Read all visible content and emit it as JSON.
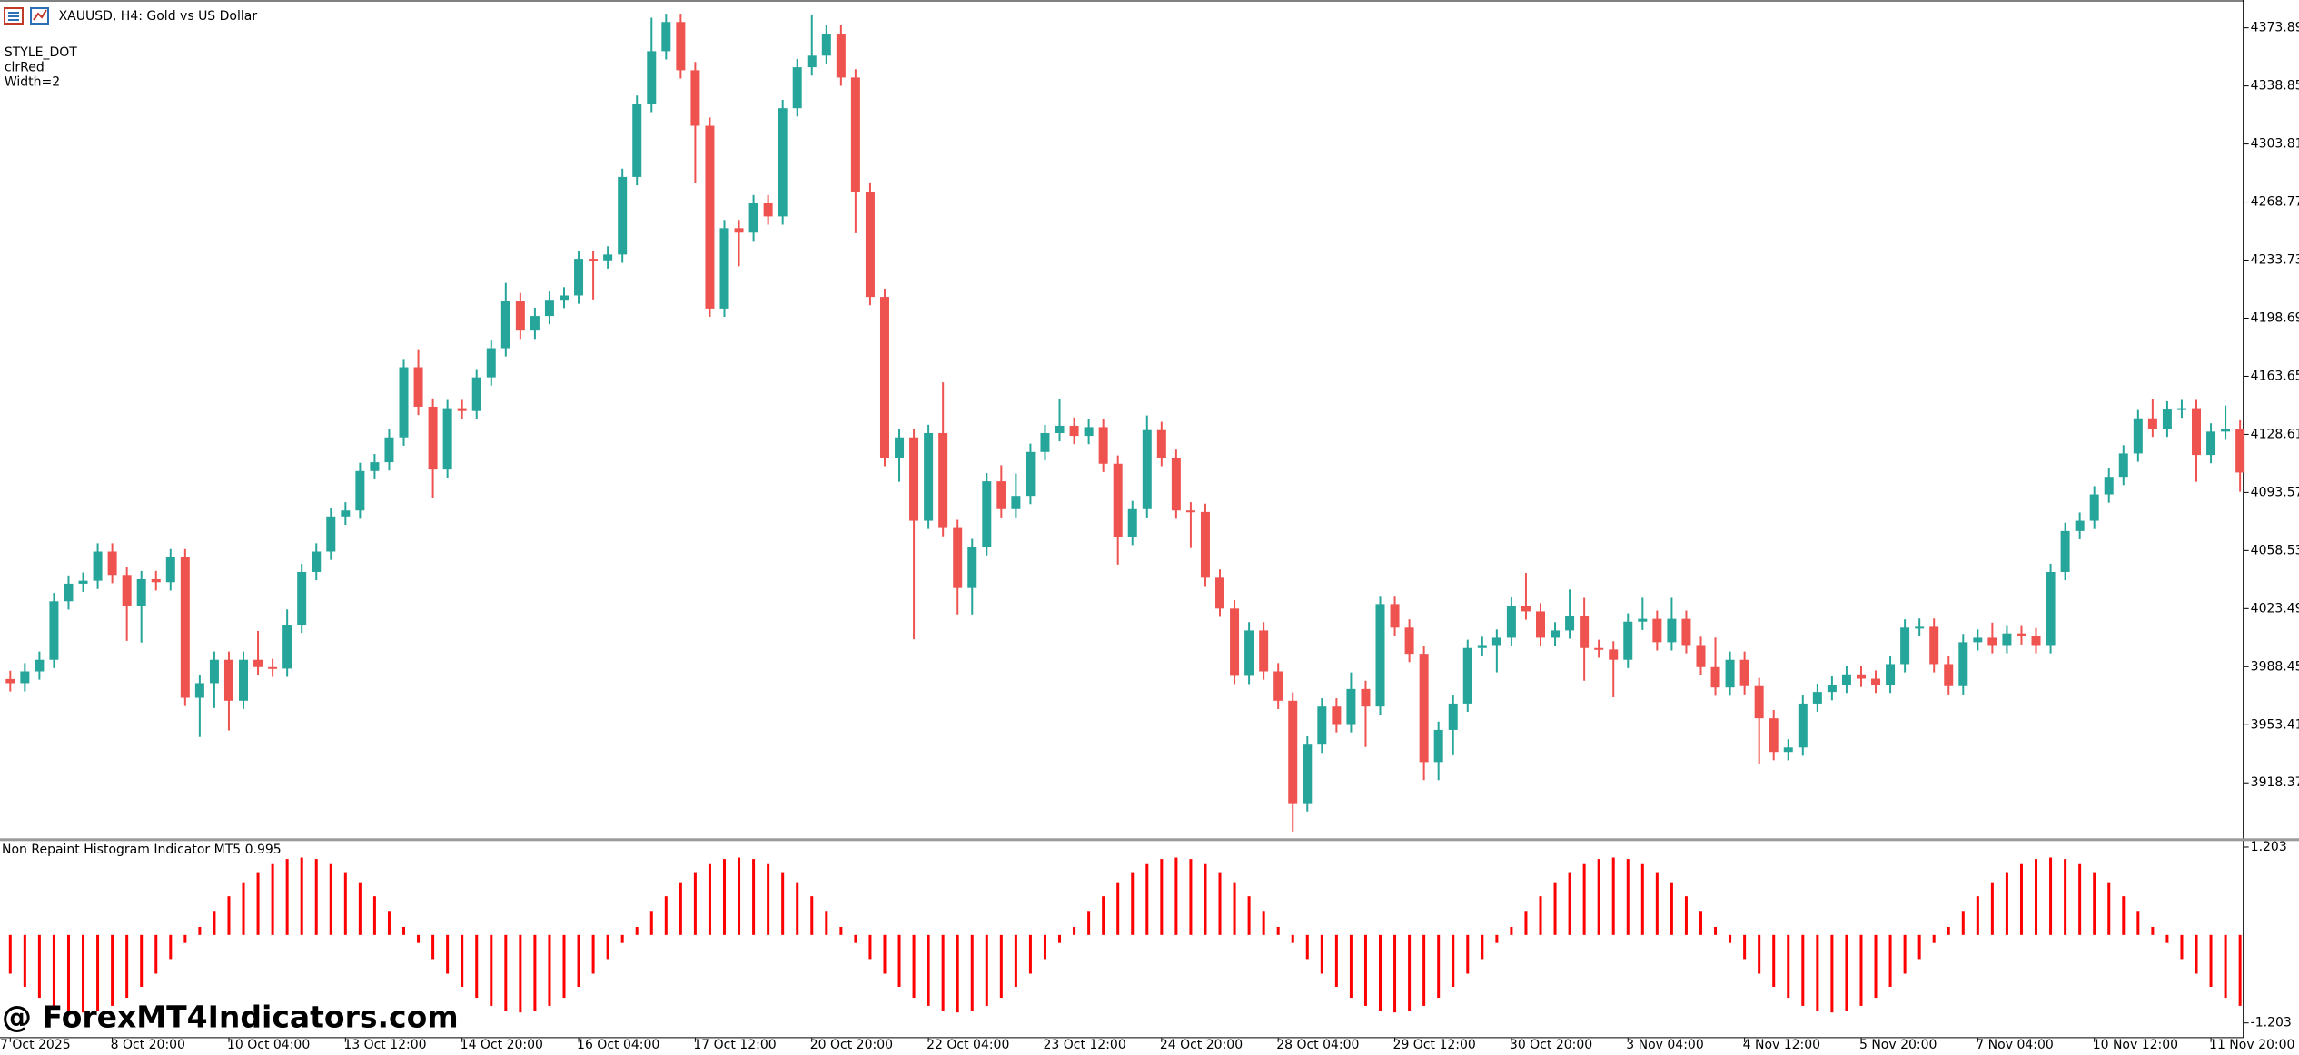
{
  "chart_data": [
    {
      "type": "candlestick",
      "title": "XAUUSD, H4:  Gold vs US Dollar",
      "annotations": [
        "STYLE_DOT",
        "clrRed",
        "Width=2"
      ],
      "watermark": "@ ForexMT4Indicators.com",
      "categories": [
        "7 Oct 2025",
        null,
        null,
        null,
        null,
        null,
        null,
        "8 Oct 20:00",
        null,
        null,
        null,
        null,
        null,
        null,
        null,
        "10 Oct 04:00",
        null,
        null,
        null,
        null,
        null,
        null,
        null,
        "13 Oct 12:00",
        null,
        null,
        null,
        null,
        null,
        null,
        null,
        "14 Oct 20:00",
        null,
        null,
        null,
        null,
        null,
        null,
        null,
        "16 Oct 04:00",
        null,
        null,
        null,
        null,
        null,
        null,
        null,
        "17 Oct 12:00",
        null,
        null,
        null,
        null,
        null,
        null,
        null,
        "20 Oct 20:00",
        null,
        null,
        null,
        null,
        null,
        null,
        null,
        "22 Oct 04:00",
        null,
        null,
        null,
        null,
        null,
        null,
        null,
        "23 Oct 12:00",
        null,
        null,
        null,
        null,
        null,
        null,
        null,
        "24 Oct 20:00",
        null,
        null,
        null,
        null,
        null,
        null,
        null,
        "28 Oct 04:00",
        null,
        null,
        null,
        null,
        null,
        null,
        null,
        "29 Oct 12:00",
        null,
        null,
        null,
        null,
        null,
        null,
        null,
        "30 Oct 20:00",
        null,
        null,
        null,
        null,
        null,
        null,
        null,
        "3 Nov 04:00",
        null,
        null,
        null,
        null,
        null,
        null,
        null,
        "4 Nov 12:00",
        null,
        null,
        null,
        null,
        null,
        null,
        null,
        "5 Nov 20:00",
        null,
        null,
        null,
        null,
        null,
        null,
        null,
        "7 Nov 04:00",
        null,
        null,
        null,
        null,
        null,
        null,
        null,
        "10 Nov 12:00",
        null,
        null,
        null,
        null,
        null,
        null,
        null,
        "11 Nov 20:00",
        null,
        null
      ],
      "open": [
        3981.0,
        3978.5,
        3985.6,
        3992.6,
        4027.9,
        4038.5,
        4040.3,
        4057.9,
        4043.8,
        4025.3,
        4041.2,
        4039.4,
        4054.4,
        3969.7,
        3978.5,
        3992.6,
        3967.9,
        3992.6,
        3988.2,
        3987.3,
        4013.8,
        4045.6,
        4057.9,
        4079.1,
        4082.7,
        4106.5,
        4111.8,
        4126.8,
        4169.1,
        4145.3,
        4107.4,
        4144.4,
        4142.7,
        4163.0,
        4180.6,
        4208.9,
        4191.2,
        4200.0,
        4209.8,
        4212.4,
        4234.5,
        4233.6,
        4237.1,
        4283.9,
        4328.0,
        4359.8,
        4377.4,
        4348.3,
        4314.8,
        4204.5,
        4253.0,
        4250.3,
        4268.0,
        4260.1,
        4325.4,
        4350.1,
        4357.1,
        4370.4,
        4343.9,
        4275.1,
        4211.5,
        4114.4,
        4126.8,
        4076.5,
        4129.4,
        4072.1,
        4035.9,
        4060.6,
        4100.3,
        4083.5,
        4091.5,
        4118.0,
        4129.4,
        4133.8,
        4127.7,
        4133.0,
        4110.9,
        4066.8,
        4083.5,
        4131.2,
        4114.4,
        4082.7,
        4081.8,
        4042.1,
        4023.5,
        3982.9,
        4010.3,
        3985.6,
        3967.9,
        3906.1,
        3941.4,
        3964.4,
        3953.8,
        3975.0,
        3964.4,
        4026.2,
        4012.0,
        3996.2,
        3930.9,
        3950.3,
        3966.2,
        3999.7,
        4001.5,
        4005.9,
        4025.3,
        4021.8,
        4005.9,
        4010.3,
        4019.1,
        3999.7,
        3998.8,
        3992.6,
        4015.6,
        4017.3,
        4003.2,
        4017.3,
        4001.5,
        3988.2,
        3975.9,
        3992.6,
        3976.7,
        3957.3,
        3937.0,
        3939.7,
        3966.2,
        3973.2,
        3977.6,
        3983.8,
        3981.2,
        3977.6,
        3990.0,
        4012.0,
        4012.5,
        3990.0,
        3976.7,
        4003.2,
        4005.9,
        4001.5,
        4008.5,
        4006.8,
        4001.5,
        4045.6,
        4070.3,
        4076.5,
        4092.4,
        4103.0,
        4117.1,
        4138.3,
        4132.1,
        4143.6,
        4144.4,
        4116.2,
        4130.3,
        4132.1
      ],
      "high": [
        3986.0,
        3990.6,
        3997.6,
        4032.9,
        4043.5,
        4045.3,
        4062.9,
        4062.9,
        4048.8,
        4046.2,
        4046.2,
        4059.4,
        4059.4,
        3983.5,
        3997.6,
        3997.6,
        3997.6,
        4010.0,
        3993.2,
        4023.0,
        4050.6,
        4062.9,
        4084.1,
        4087.7,
        4111.5,
        4116.8,
        4131.8,
        4174.1,
        4180.0,
        4150.3,
        4149.4,
        4149.4,
        4168.0,
        4185.6,
        4220.0,
        4213.9,
        4205.0,
        4214.8,
        4217.4,
        4239.5,
        4239.5,
        4242.1,
        4288.9,
        4333.0,
        4380.0,
        4382.4,
        4382.4,
        4353.3,
        4319.8,
        4258.0,
        4258.0,
        4273.0,
        4273.0,
        4330.4,
        4355.1,
        4382.0,
        4375.4,
        4375.4,
        4348.9,
        4280.1,
        4216.5,
        4131.8,
        4131.8,
        4134.4,
        4160.0,
        4077.1,
        4065.6,
        4105.3,
        4110.0,
        4105.0,
        4123.0,
        4134.4,
        4150.0,
        4138.8,
        4138.0,
        4138.0,
        4115.9,
        4088.5,
        4140.0,
        4136.2,
        4119.4,
        4087.7,
        4086.8,
        4047.1,
        4028.5,
        4015.3,
        4015.3,
        3990.6,
        3972.9,
        3946.4,
        3969.4,
        3969.4,
        3985.0,
        3980.0,
        4031.2,
        4031.2,
        4017.0,
        4001.2,
        3955.3,
        3971.2,
        4004.7,
        4006.5,
        4010.9,
        4030.3,
        4045.0,
        4026.8,
        4015.3,
        4035.0,
        4030.0,
        4004.7,
        4003.8,
        4020.6,
        4030.0,
        4022.3,
        4030.0,
        4022.3,
        4006.5,
        4006.0,
        3997.6,
        3997.6,
        3981.7,
        3962.3,
        3944.7,
        3971.2,
        3978.2,
        3982.6,
        3988.8,
        3988.8,
        3986.2,
        3995.0,
        4017.0,
        4017.5,
        4017.5,
        3995.0,
        4008.2,
        4010.9,
        4015.0,
        4013.5,
        4013.5,
        4011.8,
        4050.6,
        4075.3,
        4081.5,
        4097.4,
        4108.0,
        4122.1,
        4143.3,
        4150.0,
        4148.6,
        4149.4,
        4149.4,
        4135.3,
        4146.0,
        4137.1
      ],
      "low": [
        3973.5,
        3973.5,
        3980.6,
        3987.6,
        4022.9,
        4033.5,
        4035.3,
        4038.8,
        4004.0,
        4003.0,
        4034.4,
        4034.4,
        3964.7,
        3946.0,
        3963.5,
        3950.0,
        3962.9,
        3983.2,
        3982.3,
        3982.3,
        4008.8,
        4040.6,
        4052.9,
        4074.1,
        4077.7,
        4101.5,
        4106.8,
        4121.8,
        4140.3,
        4090.0,
        4102.4,
        4137.7,
        4137.7,
        4158.0,
        4175.6,
        4186.2,
        4186.2,
        4195.0,
        4204.8,
        4207.4,
        4210.0,
        4228.6,
        4232.1,
        4278.9,
        4323.0,
        4354.8,
        4343.3,
        4280.0,
        4199.5,
        4199.5,
        4230.0,
        4245.3,
        4255.1,
        4255.1,
        4320.4,
        4345.1,
        4352.1,
        4338.9,
        4250.0,
        4206.5,
        4109.4,
        4100.0,
        4005.0,
        4071.5,
        4067.1,
        4020.0,
        4020.0,
        4055.6,
        4078.5,
        4078.5,
        4086.5,
        4113.0,
        4124.4,
        4122.7,
        4122.7,
        4105.9,
        4050.0,
        4061.8,
        4078.5,
        4109.4,
        4077.7,
        4060.0,
        4037.1,
        4018.5,
        3977.9,
        3977.9,
        3980.6,
        3962.9,
        3889.0,
        3901.1,
        3936.4,
        3948.8,
        3948.8,
        3940.0,
        3959.4,
        4007.0,
        3991.2,
        3920.0,
        3920.0,
        3935.0,
        3961.2,
        3994.7,
        3985.0,
        4000.9,
        4016.8,
        4000.9,
        4000.9,
        4005.3,
        3980.0,
        3993.8,
        3970.0,
        3987.6,
        4010.6,
        3998.2,
        3998.2,
        3996.5,
        3983.2,
        3970.9,
        3970.9,
        3971.7,
        3930.0,
        3932.0,
        3932.0,
        3934.7,
        3961.2,
        3968.2,
        3972.6,
        3976.2,
        3972.6,
        3972.6,
        3985.0,
        4007.0,
        3985.0,
        3971.7,
        3971.7,
        3998.2,
        3996.5,
        3996.5,
        4001.8,
        3996.5,
        3996.5,
        4040.6,
        4065.3,
        4071.5,
        4087.4,
        4098.0,
        4112.1,
        4127.1,
        4127.1,
        4138.6,
        4100.0,
        4111.2,
        4125.3,
        4094.0
      ],
      "close": [
        3978.5,
        3985.6,
        3992.6,
        4027.9,
        4038.5,
        4040.3,
        4057.9,
        4043.8,
        4025.3,
        4041.2,
        4039.4,
        4054.4,
        3969.7,
        3978.5,
        3992.6,
        3967.9,
        3992.6,
        3988.2,
        3987.3,
        4013.8,
        4045.6,
        4057.9,
        4079.1,
        4082.7,
        4106.5,
        4111.8,
        4126.8,
        4169.1,
        4145.3,
        4107.4,
        4144.4,
        4142.7,
        4163.0,
        4180.6,
        4208.9,
        4191.2,
        4200.0,
        4209.8,
        4212.4,
        4234.5,
        4233.6,
        4237.1,
        4283.9,
        4328.0,
        4359.8,
        4377.4,
        4348.3,
        4314.8,
        4204.5,
        4253.0,
        4250.3,
        4268.0,
        4260.1,
        4325.4,
        4350.1,
        4357.1,
        4370.4,
        4343.9,
        4275.1,
        4211.5,
        4114.4,
        4126.8,
        4076.5,
        4129.4,
        4072.1,
        4035.9,
        4060.6,
        4100.3,
        4083.5,
        4091.5,
        4118.0,
        4129.4,
        4133.8,
        4127.7,
        4133.0,
        4110.9,
        4066.8,
        4083.5,
        4131.2,
        4114.4,
        4082.7,
        4081.8,
        4042.1,
        4023.5,
        3982.9,
        4010.3,
        3985.6,
        3967.9,
        3906.1,
        3941.4,
        3964.4,
        3953.8,
        3975.0,
        3964.4,
        4026.2,
        4012.0,
        3996.2,
        3930.9,
        3950.3,
        3966.2,
        3999.7,
        4001.5,
        4005.9,
        4025.3,
        4021.8,
        4005.9,
        4010.3,
        4019.1,
        3999.7,
        3998.8,
        3992.6,
        4015.6,
        4017.3,
        4003.2,
        4017.3,
        4001.5,
        3988.2,
        3975.9,
        3992.6,
        3976.7,
        3957.3,
        3937.0,
        3939.7,
        3966.2,
        3973.2,
        3977.6,
        3983.8,
        3981.2,
        3977.6,
        3990.0,
        4012.0,
        4012.5,
        3990.0,
        3976.7,
        4003.2,
        4005.9,
        4001.5,
        4008.5,
        4006.8,
        4001.5,
        4045.6,
        4070.3,
        4076.5,
        4092.4,
        4103.0,
        4117.1,
        4138.3,
        4132.1,
        4143.6,
        4144.4,
        4116.2,
        4130.3,
        4132.1,
        4105.6
      ],
      "up_color": "#26a69a",
      "down_color": "#ef5350",
      "ylim": [
        3885.8,
        4389.8
      ],
      "yticks": [
        4373.89,
        4338.85,
        4303.81,
        4268.77,
        4233.73,
        4198.69,
        4163.65,
        4128.61,
        4093.57,
        4058.53,
        4023.49,
        3988.45,
        3953.41,
        3918.37
      ]
    },
    {
      "type": "bar",
      "title": "Non Repaint Histogram Indicator MT5 0.995",
      "color": "#ff0000",
      "values": [
        -0.53,
        -0.71,
        -0.86,
        -0.97,
        -1.04,
        -1.06,
        -1.04,
        -0.97,
        -0.86,
        -0.71,
        -0.53,
        -0.33,
        -0.11,
        0.11,
        0.33,
        0.53,
        0.71,
        0.86,
        0.97,
        1.04,
        1.06,
        1.04,
        0.97,
        0.86,
        0.71,
        0.53,
        0.33,
        0.11,
        -0.11,
        -0.33,
        -0.53,
        -0.71,
        -0.86,
        -0.97,
        -1.04,
        -1.06,
        -1.04,
        -0.97,
        -0.86,
        -0.71,
        -0.53,
        -0.33,
        -0.11,
        0.11,
        0.33,
        0.53,
        0.71,
        0.86,
        0.97,
        1.04,
        1.06,
        1.04,
        0.97,
        0.86,
        0.71,
        0.53,
        0.33,
        0.11,
        -0.11,
        -0.33,
        -0.53,
        -0.71,
        -0.86,
        -0.97,
        -1.04,
        -1.06,
        -1.04,
        -0.97,
        -0.86,
        -0.71,
        -0.53,
        -0.33,
        -0.11,
        0.11,
        0.33,
        0.53,
        0.71,
        0.86,
        0.97,
        1.04,
        1.06,
        1.04,
        0.97,
        0.86,
        0.71,
        0.53,
        0.33,
        0.11,
        -0.11,
        -0.33,
        -0.53,
        -0.71,
        -0.86,
        -0.97,
        -1.04,
        -1.06,
        -1.04,
        -0.97,
        -0.86,
        -0.71,
        -0.53,
        -0.33,
        -0.11,
        0.11,
        0.33,
        0.53,
        0.71,
        0.86,
        0.97,
        1.04,
        1.06,
        1.04,
        0.97,
        0.86,
        0.71,
        0.53,
        0.33,
        0.11,
        -0.11,
        -0.33,
        -0.53,
        -0.71,
        -0.86,
        -0.97,
        -1.04,
        -1.06,
        -1.04,
        -0.97,
        -0.86,
        -0.71,
        -0.53,
        -0.33,
        -0.11,
        0.11,
        0.33,
        0.53,
        0.71,
        0.86,
        0.97,
        1.04,
        1.06,
        1.04,
        0.97,
        0.86,
        0.71,
        0.53,
        0.33,
        0.11,
        -0.11,
        -0.33,
        -0.53,
        -0.71,
        -0.86,
        -0.97
      ],
      "ylim": [
        -1.203,
        1.203
      ],
      "yticks": [
        1.203,
        -1.203
      ]
    }
  ]
}
